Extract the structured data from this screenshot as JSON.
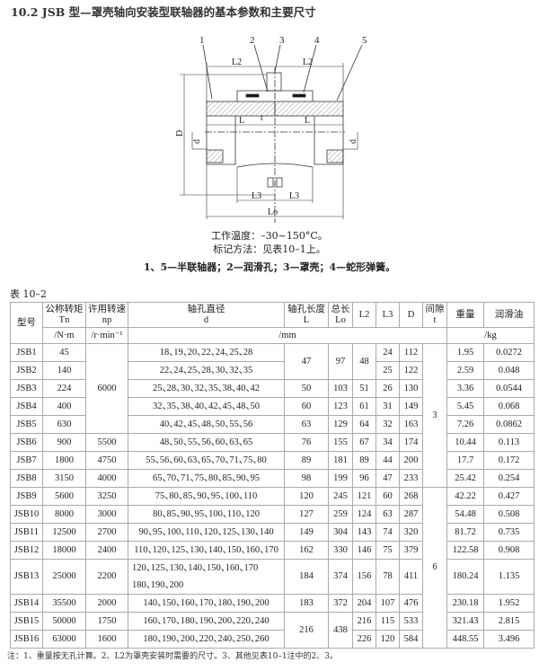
{
  "title": "10.2  JSB 型—罩壳轴向安装型联轴器的基本参数和主要尺寸",
  "drawing": {
    "part_labels": [
      "1",
      "2",
      "3",
      "4",
      "5"
    ],
    "dim_labels": {
      "L2": "L2",
      "L": "L",
      "t": "t",
      "D": "D",
      "d": "d",
      "L3": "L3",
      "L0": "Lo"
    }
  },
  "captions": {
    "temperature": "工作温度：–30~150°C。",
    "marking": "标记方法：见表10–1上。",
    "parts": "1、5—半联轴器；2—润滑孔；3—罩壳；4—蛇形弹簧。"
  },
  "table_label": "表 10–2",
  "headers": {
    "model": "型号",
    "torque": "公称转矩\nTn",
    "speed": "许用转速\nnp",
    "d": "轴孔直径\nd",
    "L": "轴孔长度\nL",
    "Lo": "总长\nLo",
    "L2": "L2",
    "L3": "L3",
    "D": "D",
    "gap": "间隙\nt",
    "weight": "重量",
    "oil": "润滑油",
    "unit_torque": "/N·m",
    "unit_speed": "/r·min⁻¹",
    "unit_mm": "/mm",
    "unit_kg": "/kg"
  },
  "rows": [
    {
      "model": "JSB1",
      "torque": "45",
      "speed": "6000",
      "d": "18、19、20、22、24、25、28",
      "L": "47",
      "Lo": "97",
      "L2": "48",
      "L3": "24",
      "D": "112",
      "gap": "3",
      "weight": "1.95",
      "oil": "0.0272"
    },
    {
      "model": "JSB2",
      "torque": "140",
      "speed": null,
      "d": "22、24、25、28、30、32、35",
      "L": null,
      "Lo": null,
      "L2": null,
      "L3": "25",
      "D": "122",
      "gap": null,
      "weight": "2.59",
      "oil": "0.048"
    },
    {
      "model": "JSB3",
      "torque": "224",
      "speed": null,
      "d": "25、28、30、32、35、38、40、42",
      "L": "50",
      "Lo": "103",
      "L2": "51",
      "L3": "26",
      "D": "130",
      "gap": null,
      "weight": "3.36",
      "oil": "0.0544"
    },
    {
      "model": "JSB4",
      "torque": "400",
      "speed": null,
      "d": "32、35、38、40、42、45、48、50",
      "L": "60",
      "Lo": "123",
      "L2": "61",
      "L3": "31",
      "D": "149",
      "gap": null,
      "weight": "5.45",
      "oil": "0.068"
    },
    {
      "model": "JSB5",
      "torque": "630",
      "speed": null,
      "d": "40、42、45、48、50、55、56",
      "L": "63",
      "Lo": "129",
      "L2": "64",
      "L3": "32",
      "D": "163",
      "gap": null,
      "weight": "7.26",
      "oil": "0.0862"
    },
    {
      "model": "JSB6",
      "torque": "900",
      "speed": "5500",
      "d": "48、50、55、56、60、63、65",
      "L": "76",
      "Lo": "155",
      "L2": "67",
      "L3": "34",
      "D": "174",
      "gap": null,
      "weight": "10.44",
      "oil": "0.113"
    },
    {
      "model": "JSB7",
      "torque": "1800",
      "speed": "4750",
      "d": "55、56、60、63、65、70、71、75、80",
      "L": "89",
      "Lo": "181",
      "L2": "89",
      "L3": "44",
      "D": "200",
      "gap": null,
      "weight": "17.7",
      "oil": "0.172"
    },
    {
      "model": "JSB8",
      "torque": "3150",
      "speed": "4000",
      "d": "65、70、71、75、80、85、90、95",
      "L": "98",
      "Lo": "199",
      "L2": "96",
      "L3": "47",
      "D": "233",
      "gap": null,
      "weight": "25.42",
      "oil": "0.254"
    },
    {
      "model": "JSB9",
      "torque": "5600",
      "speed": "3250",
      "d": "75、80、85、90、95、100、110",
      "L": "120",
      "Lo": "245",
      "L2": "121",
      "L3": "60",
      "D": "268",
      "gap": "6",
      "weight": "42.22",
      "oil": "0.427"
    },
    {
      "model": "JSB10",
      "torque": "8000",
      "speed": "3000",
      "d": "80、85、90、95、100、110、120",
      "L": "127",
      "Lo": "259",
      "L2": "124",
      "L3": "63",
      "D": "287",
      "gap": null,
      "weight": "54.48",
      "oil": "0.508"
    },
    {
      "model": "JSB11",
      "torque": "12500",
      "speed": "2700",
      "d": "90、95、100、110、120、125、130、140",
      "L": "149",
      "Lo": "304",
      "L2": "143",
      "L3": "74",
      "D": "320",
      "gap": null,
      "weight": "81.72",
      "oil": "0.735"
    },
    {
      "model": "JSB12",
      "torque": "18000",
      "speed": "2400",
      "d": "110、120、125、130、140、150、160、170",
      "L": "162",
      "Lo": "330",
      "L2": "146",
      "L3": "75",
      "D": "379",
      "gap": null,
      "weight": "122.58",
      "oil": "0.908"
    },
    {
      "model": "JSB13",
      "torque": "25000",
      "speed": "2200",
      "d": "120、125、130、140、150、160、170\n180、190、200",
      "L": "184",
      "Lo": "374",
      "L2": "156",
      "L3": "78",
      "D": "411",
      "gap": null,
      "weight": "180.24",
      "oil": "1.135"
    },
    {
      "model": "JSB14",
      "torque": "35500",
      "speed": "2000",
      "d": "140、150、160、170、180、190、200",
      "L": "183",
      "Lo": "372",
      "L2": "204",
      "L3": "107",
      "D": "476",
      "gap": null,
      "weight": "230.18",
      "oil": "1.952"
    },
    {
      "model": "JSB15",
      "torque": "50000",
      "speed": "1750",
      "d": "160、170、180、190、200、220、240",
      "L": "216",
      "Lo": "438",
      "L2": "216",
      "L3": "115",
      "D": "533",
      "gap": null,
      "weight": "321.43",
      "oil": "2.815"
    },
    {
      "model": "JSB16",
      "torque": "63000",
      "speed": "1600",
      "d": "180、190、200、220、240、250、260",
      "L": null,
      "Lo": null,
      "L2": "226",
      "L3": "120",
      "D": "584",
      "gap": null,
      "weight": "448.55",
      "oil": "3.496"
    }
  ],
  "note": "注：1、重量按无孔计算。2、L2为罩壳安装时需要的尺寸。3、其他见表10–1注中的2、3。"
}
